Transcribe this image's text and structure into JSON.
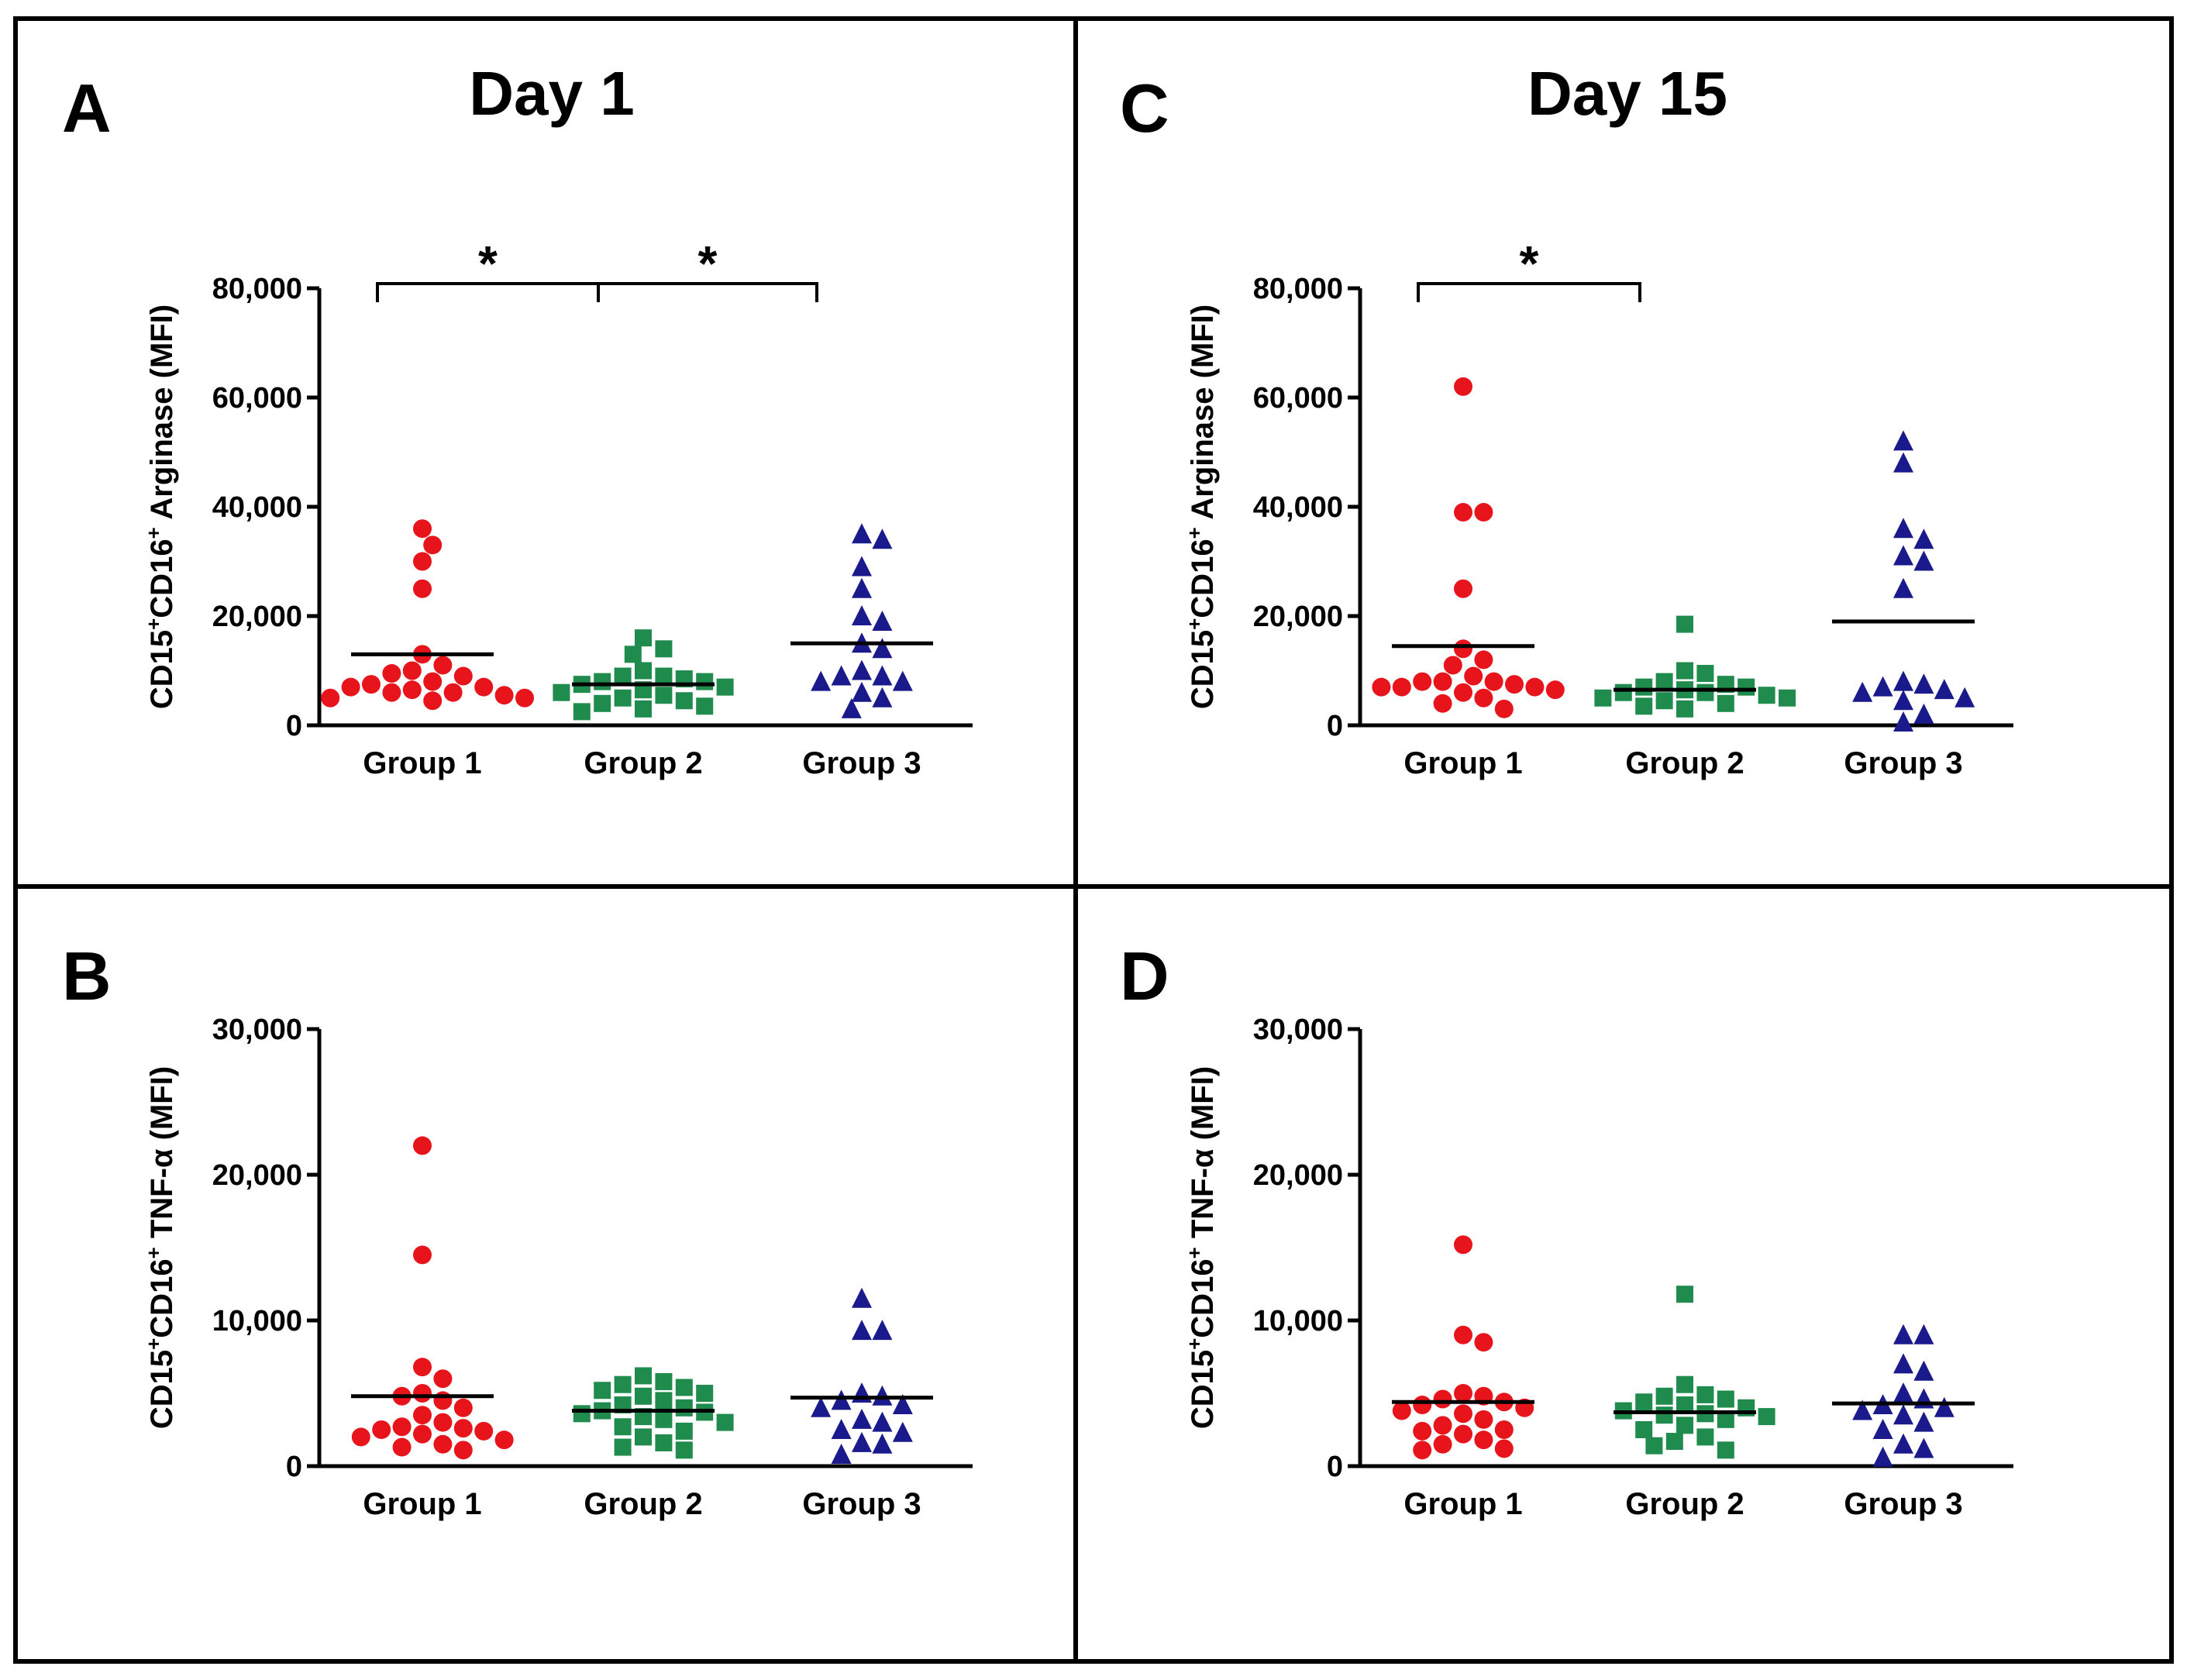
{
  "colors": {
    "group1": "#e8141b",
    "group2": "#1f8b4c",
    "group3": "#1a1a8c",
    "axis": "#000000",
    "frame": "#000000"
  },
  "columns": [
    {
      "title": "Day 1"
    },
    {
      "title": "Day 15"
    }
  ],
  "chart_data": [
    {
      "id": "A",
      "type": "scatter",
      "letter": "A",
      "ylabel_parts": [
        "CD15",
        "+",
        "CD16",
        "+",
        " Arginase (MFI)"
      ],
      "categories": [
        "Group 1",
        "Group 2",
        "Group 3"
      ],
      "ylim": [
        0,
        80000
      ],
      "yticks": [
        0,
        20000,
        40000,
        60000,
        80000
      ],
      "ytick_labels": [
        "0",
        "20,000",
        "40,000",
        "60,000",
        "80,000"
      ],
      "series": [
        {
          "name": "Group 1",
          "marker": "circle",
          "mean": 13000,
          "values": [
            36000,
            33000,
            30000,
            25000,
            13000,
            11000,
            10000,
            9500,
            9000,
            8000,
            7500,
            7000,
            6500,
            6000,
            5500,
            5000,
            5000,
            4500,
            7000,
            6000
          ]
        },
        {
          "name": "Group 2",
          "marker": "square",
          "mean": 7500,
          "values": [
            16000,
            14000,
            13000,
            10000,
            9000,
            8500,
            8000,
            8000,
            7500,
            7000,
            6500,
            6000,
            5500,
            5000,
            4500,
            4000,
            3500,
            3000,
            2500,
            9000
          ]
        },
        {
          "name": "Group 3",
          "marker": "triangle",
          "mean": 15000,
          "values": [
            35000,
            34000,
            29000,
            25000,
            20000,
            19000,
            15000,
            14000,
            10000,
            9000,
            9000,
            8000,
            8000,
            6000,
            5000,
            3000
          ]
        }
      ],
      "significance": [
        {
          "from": 0,
          "to": 1,
          "label": "*"
        },
        {
          "from": 1,
          "to": 2,
          "label": "*"
        }
      ]
    },
    {
      "id": "B",
      "type": "scatter",
      "letter": "B",
      "ylabel_parts": [
        "CD15",
        "+",
        "CD16",
        "+",
        " TNF-α (MFI)"
      ],
      "categories": [
        "Group 1",
        "Group 2",
        "Group 3"
      ],
      "ylim": [
        0,
        30000
      ],
      "yticks": [
        0,
        10000,
        20000,
        30000
      ],
      "ytick_labels": [
        "0",
        "10,000",
        "20,000",
        "30,000"
      ],
      "series": [
        {
          "name": "Group 1",
          "marker": "circle",
          "mean": 4800,
          "values": [
            22000,
            14500,
            6800,
            6000,
            5000,
            4800,
            4500,
            4000,
            3500,
            3000,
            2700,
            2600,
            2500,
            2400,
            2000,
            1800,
            1500,
            1300,
            1100,
            2200
          ]
        },
        {
          "name": "Group 2",
          "marker": "square",
          "mean": 3800,
          "values": [
            6200,
            5800,
            5600,
            5400,
            5200,
            5000,
            4800,
            4500,
            4200,
            4000,
            3800,
            3600,
            3400,
            3200,
            3000,
            2700,
            2400,
            2000,
            1600,
            1300,
            1100,
            3700
          ]
        },
        {
          "name": "Group 3",
          "marker": "triangle",
          "mean": 4700,
          "values": [
            11500,
            9300,
            9300,
            5000,
            4800,
            4500,
            4200,
            4000,
            3200,
            3000,
            2500,
            2300,
            1600,
            1500,
            800
          ]
        }
      ],
      "significance": []
    },
    {
      "id": "C",
      "type": "scatter",
      "letter": "C",
      "ylabel_parts": [
        "CD15",
        "+",
        "CD16",
        "+",
        " Arginase (MFI)"
      ],
      "categories": [
        "Group 1",
        "Group 2",
        "Group 3"
      ],
      "ylim": [
        0,
        80000
      ],
      "yticks": [
        0,
        20000,
        40000,
        60000,
        80000
      ],
      "ytick_labels": [
        "0",
        "20,000",
        "40,000",
        "60,000",
        "80,000"
      ],
      "series": [
        {
          "name": "Group 1",
          "marker": "circle",
          "mean": 14500,
          "values": [
            62000,
            39000,
            39000,
            25000,
            14000,
            12000,
            11000,
            9000,
            8000,
            8000,
            7500,
            7000,
            7000,
            6000,
            5000,
            4000,
            3000,
            8000,
            7000,
            6500
          ]
        },
        {
          "name": "Group 2",
          "marker": "square",
          "mean": 6500,
          "values": [
            18500,
            10000,
            9500,
            8000,
            7500,
            7000,
            7000,
            6500,
            6000,
            5500,
            5000,
            4500,
            4000,
            3500,
            3000,
            6000,
            5000
          ]
        },
        {
          "name": "Group 3",
          "marker": "triangle",
          "mean": 19000,
          "values": [
            52000,
            48000,
            36000,
            34000,
            31000,
            30000,
            25000,
            8000,
            7500,
            7000,
            6500,
            6000,
            5000,
            4500,
            2000,
            0
          ]
        }
      ],
      "significance": [
        {
          "from": 0,
          "to": 1,
          "label": "*"
        }
      ]
    },
    {
      "id": "D",
      "type": "scatter",
      "letter": "D",
      "ylabel_parts": [
        "CD15",
        "+",
        "CD16",
        "+",
        " TNF-α (MFI)"
      ],
      "categories": [
        "Group 1",
        "Group 2",
        "Group 3"
      ],
      "ylim": [
        0,
        30000
      ],
      "yticks": [
        0,
        10000,
        20000,
        30000
      ],
      "ytick_labels": [
        "0",
        "10,000",
        "20,000",
        "30,000"
      ],
      "series": [
        {
          "name": "Group 1",
          "marker": "circle",
          "mean": 4400,
          "values": [
            15200,
            9000,
            8500,
            5000,
            4800,
            4600,
            4400,
            4200,
            4000,
            3800,
            3600,
            3200,
            2800,
            2500,
            2400,
            2200,
            1800,
            1500,
            1200,
            1100
          ]
        },
        {
          "name": "Group 2",
          "marker": "square",
          "mean": 3700,
          "values": [
            11800,
            5600,
            4900,
            4800,
            4600,
            4400,
            4200,
            4000,
            3800,
            3600,
            3400,
            3200,
            2800,
            2500,
            2000,
            1700,
            1400,
            1100,
            3500
          ]
        },
        {
          "name": "Group 3",
          "marker": "triangle",
          "mean": 4300,
          "values": [
            9000,
            9000,
            7000,
            6500,
            5000,
            4600,
            4200,
            4000,
            3800,
            3500,
            3000,
            2500,
            1500,
            1200,
            600
          ]
        }
      ],
      "significance": []
    }
  ]
}
